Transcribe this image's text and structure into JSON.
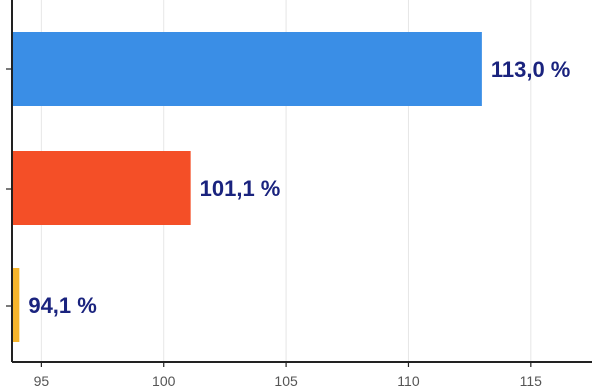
{
  "chart_data": {
    "type": "bar",
    "orientation": "horizontal",
    "categories": [
      "",
      "",
      ""
    ],
    "values": [
      113.0,
      101.1,
      94.1
    ],
    "value_labels": [
      "113,0 %",
      "101,1 %",
      "94,1 %"
    ],
    "colors": [
      "#3a8ee6",
      "#f44f27",
      "#f7b52b"
    ],
    "xlim": [
      93.8,
      117.5
    ],
    "xticks": [
      95,
      100,
      105,
      110,
      115
    ],
    "xtick_labels": [
      "95",
      "100",
      "105",
      "110",
      "115"
    ],
    "grid": true,
    "title": "",
    "xlabel": "",
    "ylabel": ""
  }
}
